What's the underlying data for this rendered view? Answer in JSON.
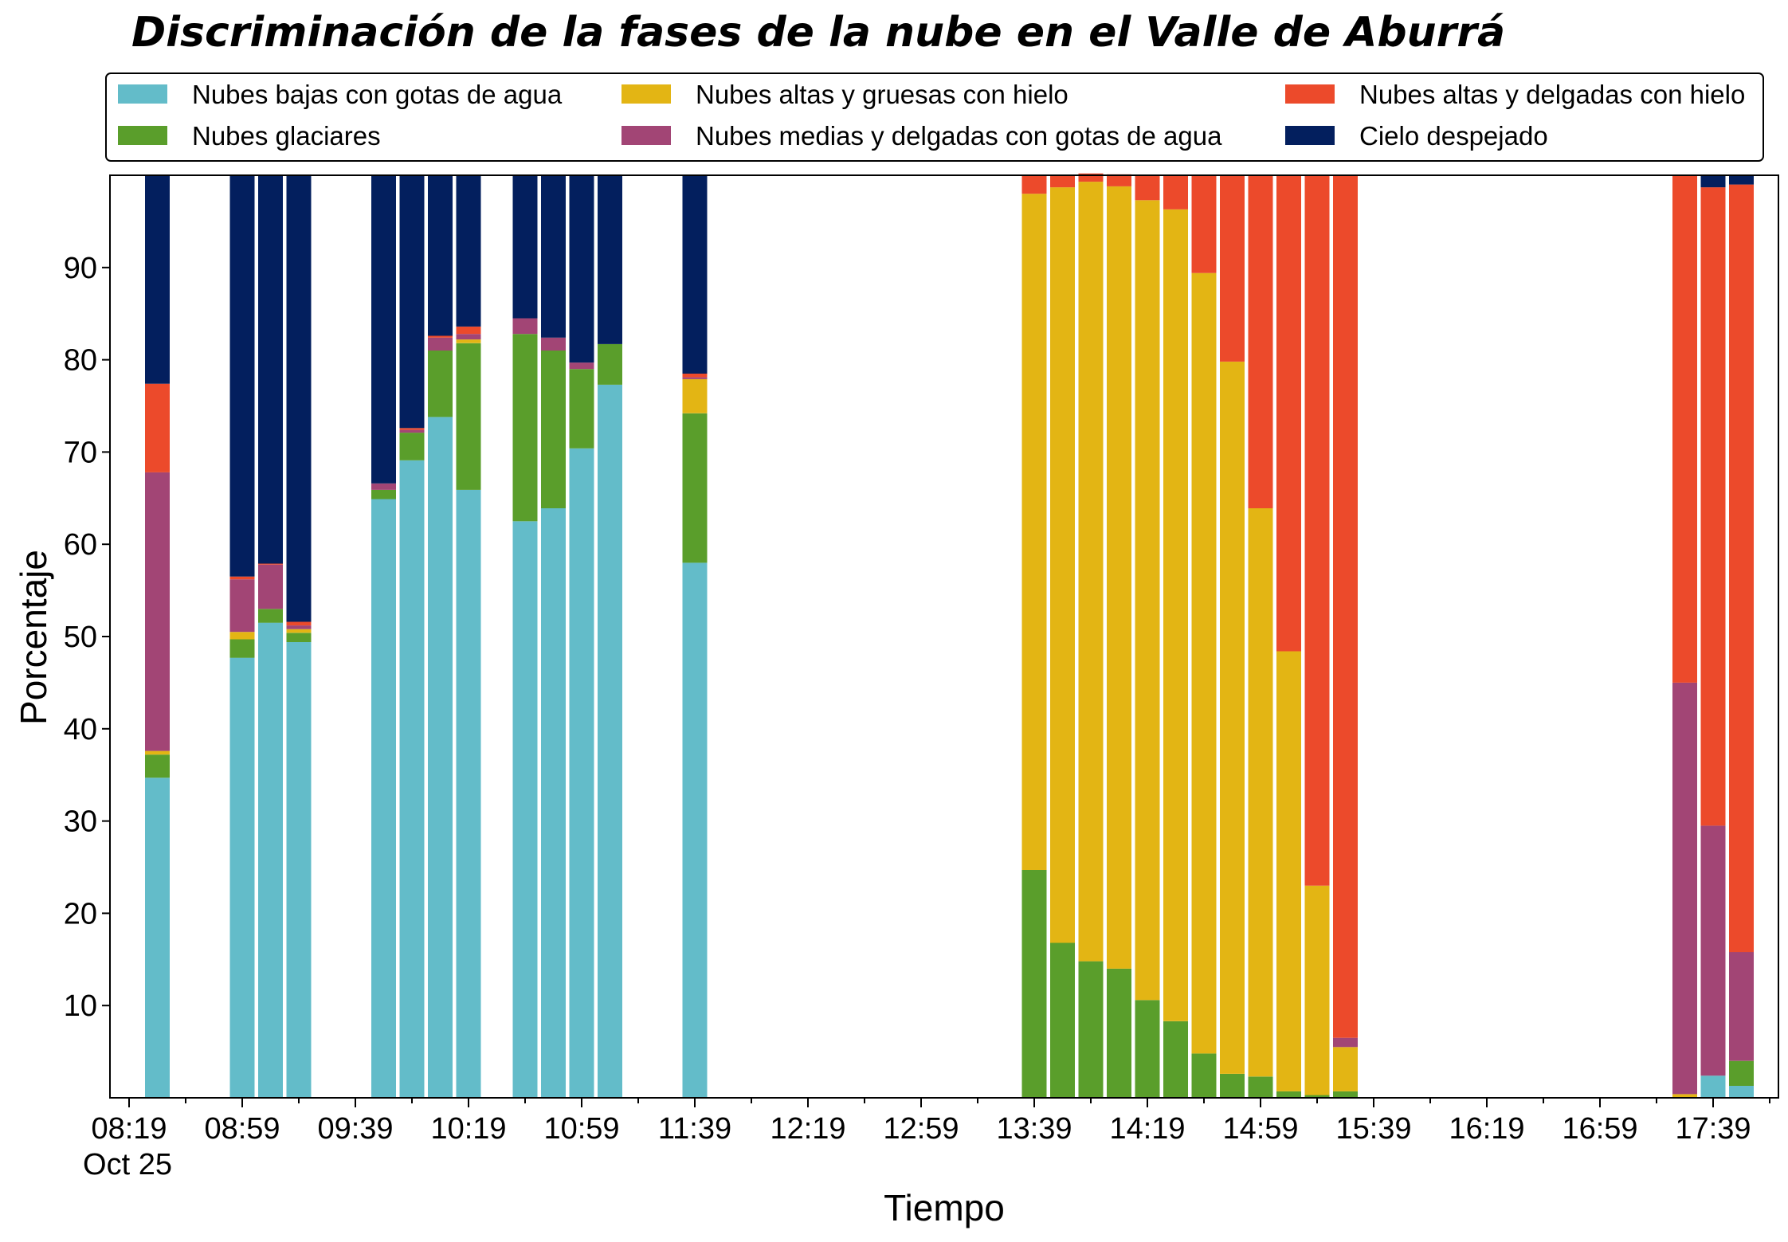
{
  "chart_data": {
    "type": "bar",
    "stacked": true,
    "title": "Discriminación de la fases de la nube en el Valle de Aburrá",
    "xlabel": "Tiempo",
    "ylabel": "Porcentaje",
    "x_tick_labels": [
      "08:19",
      "08:59",
      "09:39",
      "10:19",
      "10:59",
      "11:39",
      "12:19",
      "12:59",
      "13:39",
      "14:19",
      "14:59",
      "15:39",
      "16:19",
      "16:59",
      "17:39"
    ],
    "x_date_label": "Oct 25",
    "y_ticks": [
      10,
      20,
      30,
      40,
      50,
      60,
      70,
      80,
      90
    ],
    "ylim": [
      0,
      100
    ],
    "grid": false,
    "legend_position": "top",
    "x": [
      "08:29",
      "08:59",
      "09:09",
      "09:19",
      "09:49",
      "09:59",
      "10:09",
      "10:19",
      "10:39",
      "10:49",
      "10:59",
      "11:09",
      "11:39",
      "13:39",
      "13:49",
      "13:59",
      "14:09",
      "14:19",
      "14:29",
      "14:39",
      "14:49",
      "14:59",
      "15:09",
      "15:19",
      "15:29",
      "17:29",
      "17:39",
      "17:49"
    ],
    "series": [
      {
        "name": "Nubes bajas con gotas de agua",
        "color": "#63bcc9",
        "values": [
          34.7,
          47.7,
          51.5,
          49.4,
          64.9,
          69.1,
          73.8,
          65.9,
          62.5,
          63.9,
          70.4,
          77.3,
          58.0,
          0,
          0,
          0,
          0,
          0,
          0,
          0,
          0,
          0,
          0,
          0,
          0,
          0,
          2.4,
          1.3
        ]
      },
      {
        "name": "Nubes glaciares",
        "color": "#5a9e2b",
        "values": [
          2.5,
          2.0,
          1.5,
          1.0,
          1.0,
          3.0,
          7.2,
          15.9,
          20.3,
          17.1,
          8.6,
          4.4,
          16.2,
          24.7,
          16.8,
          14.8,
          14.0,
          10.6,
          8.3,
          4.8,
          2.6,
          2.3,
          0.7,
          0.3,
          0.7,
          0,
          0,
          2.7
        ]
      },
      {
        "name": "Nubes altas y gruesas con hielo",
        "color": "#e3b514",
        "values": [
          0.4,
          0.8,
          0,
          0.4,
          0,
          0,
          0,
          0.4,
          0,
          0,
          0,
          0,
          3.7,
          73.3,
          81.9,
          84.5,
          84.8,
          86.7,
          88.0,
          84.6,
          77.2,
          61.6,
          47.7,
          22.7,
          4.8,
          0.4,
          0,
          0
        ]
      },
      {
        "name": "Nubes medias y delgadas con gotas de agua",
        "color": "#a24575",
        "values": [
          30.2,
          5.7,
          4.8,
          0.4,
          0.7,
          0.3,
          1.4,
          0.6,
          1.7,
          1.4,
          0.7,
          0,
          0.2,
          0,
          0,
          0,
          0,
          0,
          0,
          0,
          0,
          0,
          0,
          0,
          1.0,
          44.6,
          27.1,
          11.8
        ]
      },
      {
        "name": "Nubes altas y delgadas con hielo",
        "color": "#ec4a2b",
        "values": [
          9.6,
          0.3,
          0.1,
          0.4,
          0,
          0.2,
          0.2,
          0.8,
          0,
          0,
          0,
          0,
          0.4,
          2.0,
          1.3,
          0.9,
          1.3,
          2.7,
          3.7,
          10.6,
          20.2,
          36.1,
          51.6,
          77.0,
          93.5,
          55.0,
          69.2,
          83.2
        ]
      },
      {
        "name": "Cielo despejado",
        "color": "#031f5e",
        "values": [
          22.6,
          43.5,
          42.1,
          48.4,
          33.4,
          27.4,
          17.4,
          16.4,
          15.5,
          17.6,
          20.3,
          18.3,
          21.5,
          0,
          0,
          0,
          0,
          0,
          0,
          0,
          0,
          0,
          0,
          0,
          0,
          0,
          1.3,
          1.0
        ]
      }
    ]
  }
}
